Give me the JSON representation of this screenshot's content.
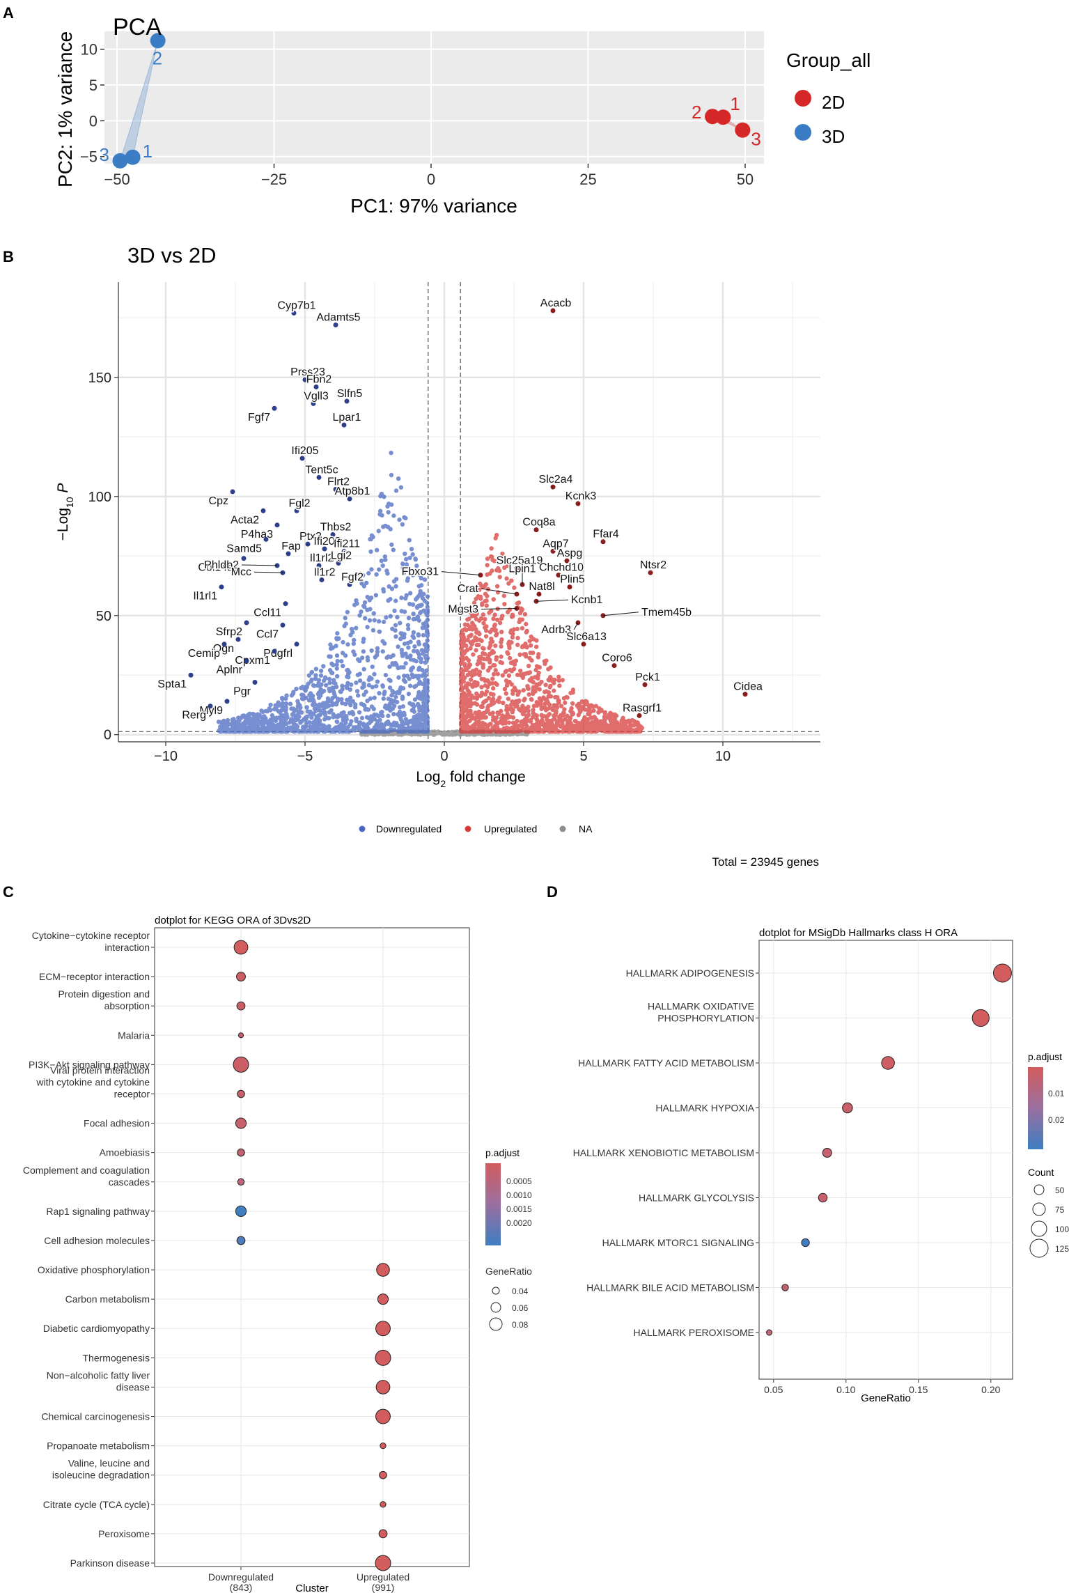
{
  "chart_data": [
    {
      "panel": "A",
      "type": "scatter",
      "title": "PCA",
      "xlabel": "PC1: 97% variance",
      "ylabel": "PC2: 1% variance",
      "xlim": [
        -52,
        53
      ],
      "ylim": [
        -6,
        12.5
      ],
      "xticks": [
        -50,
        -25,
        0,
        25,
        50
      ],
      "yticks": [
        -5,
        0,
        5,
        10
      ],
      "legend": {
        "title": "Group_all",
        "position": "right"
      },
      "series": [
        {
          "name": "2D",
          "color": "#d62728",
          "points": [
            {
              "x": 46.5,
              "y": 0.5,
              "label": "1"
            },
            {
              "x": 44.8,
              "y": 0.6,
              "label": "2"
            },
            {
              "x": 49.6,
              "y": -1.3,
              "label": "3"
            }
          ]
        },
        {
          "name": "3D",
          "color": "#3b7dc4",
          "points": [
            {
              "x": -47.5,
              "y": -5.1,
              "label": "1"
            },
            {
              "x": -43.5,
              "y": 11.2,
              "label": "2"
            },
            {
              "x": -49.5,
              "y": -5.6,
              "label": "3"
            }
          ]
        }
      ]
    },
    {
      "panel": "B",
      "type": "scatter",
      "title": "3D vs 2D",
      "xlabel": "Log2 fold change",
      "ylabel": "-Log10 P",
      "xlim": [
        -11.7,
        13.5
      ],
      "ylim": [
        -3,
        190
      ],
      "xticks": [
        -10,
        -5,
        0,
        5,
        10
      ],
      "yticks": [
        0,
        50,
        100,
        150
      ],
      "fc_cutoff": 0.58,
      "p_cutoff": 1.3,
      "legend": {
        "position": "bottom",
        "items": [
          {
            "label": "Downregulated",
            "color": "#4a68c2"
          },
          {
            "label": "Upregulated",
            "color": "#d63b3b"
          },
          {
            "label": "NA",
            "color": "#8c8c8c"
          }
        ]
      },
      "caption": "Total = 23945 genes",
      "labeled_genes": [
        {
          "gene": "Cyp7b1",
          "x": -5.4,
          "y": 177,
          "dir": "down"
        },
        {
          "gene": "Adamts5",
          "x": -3.9,
          "y": 172,
          "dir": "down"
        },
        {
          "gene": "Prss23",
          "x": -5.0,
          "y": 149,
          "dir": "down"
        },
        {
          "gene": "Fbn2",
          "x": -4.6,
          "y": 146,
          "dir": "down"
        },
        {
          "gene": "Fgf7",
          "x": -6.1,
          "y": 137,
          "dir": "down"
        },
        {
          "gene": "Vgll3",
          "x": -4.7,
          "y": 139,
          "dir": "down"
        },
        {
          "gene": "Slfn5",
          "x": -3.5,
          "y": 140,
          "dir": "down"
        },
        {
          "gene": "Lpar1",
          "x": -3.6,
          "y": 130,
          "dir": "down"
        },
        {
          "gene": "Ifi205",
          "x": -5.1,
          "y": 116,
          "dir": "down"
        },
        {
          "gene": "Tent5c",
          "x": -4.5,
          "y": 108,
          "dir": "down"
        },
        {
          "gene": "Flrt2",
          "x": -3.9,
          "y": 103,
          "dir": "down"
        },
        {
          "gene": "Cpz",
          "x": -7.6,
          "y": 102,
          "dir": "down"
        },
        {
          "gene": "Acta2",
          "x": -6.5,
          "y": 94,
          "dir": "down"
        },
        {
          "gene": "Fgl2",
          "x": -5.3,
          "y": 94,
          "dir": "down"
        },
        {
          "gene": "Atp8b1",
          "x": -3.4,
          "y": 99,
          "dir": "down"
        },
        {
          "gene": "P4ha3",
          "x": -6.0,
          "y": 88,
          "dir": "down"
        },
        {
          "gene": "Samd5",
          "x": -6.4,
          "y": 82,
          "dir": "down"
        },
        {
          "gene": "Thbs2",
          "x": -4.0,
          "y": 84,
          "dir": "down"
        },
        {
          "gene": "Ptx3",
          "x": -4.9,
          "y": 80,
          "dir": "down"
        },
        {
          "gene": "Col14a1",
          "x": -7.2,
          "y": 74,
          "dir": "down"
        },
        {
          "gene": "Fap",
          "x": -5.6,
          "y": 76,
          "dir": "down"
        },
        {
          "gene": "Ifi203",
          "x": -4.3,
          "y": 78,
          "dir": "down"
        },
        {
          "gene": "Ifi211",
          "x": -3.6,
          "y": 77,
          "dir": "down"
        },
        {
          "gene": "Phldb2",
          "x": -6.0,
          "y": 71,
          "dir": "down"
        },
        {
          "gene": "Il1rl2",
          "x": -4.5,
          "y": 71,
          "dir": "down"
        },
        {
          "gene": "Lgi2",
          "x": -3.8,
          "y": 72,
          "dir": "down"
        },
        {
          "gene": "Mcc",
          "x": -5.8,
          "y": 68,
          "dir": "down"
        },
        {
          "gene": "Il1r2",
          "x": -4.4,
          "y": 65,
          "dir": "down"
        },
        {
          "gene": "Fgf2",
          "x": -3.4,
          "y": 63,
          "dir": "down"
        },
        {
          "gene": "Il1rl1",
          "x": -8.0,
          "y": 62,
          "dir": "down"
        },
        {
          "gene": "Ccl11",
          "x": -5.7,
          "y": 55,
          "dir": "down"
        },
        {
          "gene": "Sfrp2",
          "x": -7.1,
          "y": 47,
          "dir": "down"
        },
        {
          "gene": "Ogn",
          "x": -7.4,
          "y": 40,
          "dir": "down"
        },
        {
          "gene": "Ccl7",
          "x": -5.8,
          "y": 46,
          "dir": "down"
        },
        {
          "gene": "Cemip",
          "x": -7.9,
          "y": 38,
          "dir": "down"
        },
        {
          "gene": "Pdgfrl",
          "x": -5.3,
          "y": 38,
          "dir": "down"
        },
        {
          "gene": "Cpxm1",
          "x": -6.1,
          "y": 35,
          "dir": "down"
        },
        {
          "gene": "Aplnr",
          "x": -7.1,
          "y": 31,
          "dir": "down"
        },
        {
          "gene": "Spta1",
          "x": -9.1,
          "y": 25,
          "dir": "down"
        },
        {
          "gene": "Pgr",
          "x": -6.8,
          "y": 22,
          "dir": "down"
        },
        {
          "gene": "Myl9",
          "x": -7.8,
          "y": 14,
          "dir": "down"
        },
        {
          "gene": "Rerg",
          "x": -8.4,
          "y": 12,
          "dir": "down"
        },
        {
          "gene": "Acacb",
          "x": 3.9,
          "y": 178,
          "dir": "up"
        },
        {
          "gene": "Slc2a4",
          "x": 3.9,
          "y": 104,
          "dir": "up"
        },
        {
          "gene": "Kcnk3",
          "x": 4.8,
          "y": 97,
          "dir": "up"
        },
        {
          "gene": "Coq8a",
          "x": 3.3,
          "y": 86,
          "dir": "up"
        },
        {
          "gene": "Ffar4",
          "x": 5.7,
          "y": 81,
          "dir": "up"
        },
        {
          "gene": "Aqp7",
          "x": 3.9,
          "y": 77,
          "dir": "up"
        },
        {
          "gene": "Aspg",
          "x": 4.4,
          "y": 73,
          "dir": "up"
        },
        {
          "gene": "Slc25a19",
          "x": 2.6,
          "y": 70,
          "dir": "up"
        },
        {
          "gene": "Ntsr2",
          "x": 7.4,
          "y": 68,
          "dir": "up"
        },
        {
          "gene": "Chchd10",
          "x": 4.1,
          "y": 67,
          "dir": "up"
        },
        {
          "gene": "Fbxo31",
          "x": 1.3,
          "y": 67,
          "dir": "up"
        },
        {
          "gene": "Lpin1",
          "x": 2.8,
          "y": 63,
          "dir": "up"
        },
        {
          "gene": "Plin5",
          "x": 4.5,
          "y": 62,
          "dir": "up"
        },
        {
          "gene": "Nat8l",
          "x": 3.4,
          "y": 59,
          "dir": "up"
        },
        {
          "gene": "Crat",
          "x": 2.6,
          "y": 59,
          "dir": "up"
        },
        {
          "gene": "Kcnb1",
          "x": 3.3,
          "y": 56,
          "dir": "up"
        },
        {
          "gene": "Mgst3",
          "x": 2.6,
          "y": 53,
          "dir": "up"
        },
        {
          "gene": "Adrb3",
          "x": 4.8,
          "y": 47,
          "dir": "up"
        },
        {
          "gene": "Tmem45b",
          "x": 5.7,
          "y": 50,
          "dir": "up"
        },
        {
          "gene": "Slc6a13",
          "x": 5.0,
          "y": 38,
          "dir": "up"
        },
        {
          "gene": "Coro6",
          "x": 6.1,
          "y": 29,
          "dir": "up"
        },
        {
          "gene": "Pck1",
          "x": 7.2,
          "y": 21,
          "dir": "up"
        },
        {
          "gene": "Cidea",
          "x": 10.8,
          "y": 17,
          "dir": "up"
        },
        {
          "gene": "Rasgrf1",
          "x": 7.0,
          "y": 8,
          "dir": "up"
        }
      ]
    },
    {
      "panel": "C",
      "type": "scatter",
      "title": "dotplot for KEGG ORA of 3Dvs2D",
      "xlabel": "Cluster",
      "clusters": [
        "Downregulated",
        "Upregulated"
      ],
      "cluster_counts": [
        "(843)",
        "(991)"
      ],
      "color_legend": {
        "title": "p.adjust",
        "ticks": [
          "0.0005",
          "0.0010",
          "0.0015",
          "0.0020"
        ]
      },
      "size_legend": {
        "title": "GeneRatio",
        "ticks": [
          "0.04",
          "0.06",
          "0.08"
        ]
      },
      "terms": [
        {
          "term": [
            "Cytokine−cytokine receptor",
            "interaction"
          ],
          "cluster": 0,
          "gene_ratio": 0.08,
          "padj": 0.0001
        },
        {
          "term": [
            "ECM−receptor interaction"
          ],
          "cluster": 0,
          "gene_ratio": 0.05,
          "padj": 0.0002
        },
        {
          "term": [
            "Protein digestion and",
            "absorption"
          ],
          "cluster": 0,
          "gene_ratio": 0.045,
          "padj": 0.0002
        },
        {
          "term": [
            "Malaria"
          ],
          "cluster": 0,
          "gene_ratio": 0.025,
          "padj": 0.0003
        },
        {
          "term": [
            "PI3K−Akt signaling pathway"
          ],
          "cluster": 0,
          "gene_ratio": 0.09,
          "padj": 0.0002
        },
        {
          "term": [
            "Viral protein interaction",
            "with cytokine and cytokine",
            "receptor"
          ],
          "cluster": 0,
          "gene_ratio": 0.04,
          "padj": 0.0003
        },
        {
          "term": [
            "Focal adhesion"
          ],
          "cluster": 0,
          "gene_ratio": 0.06,
          "padj": 0.0003
        },
        {
          "term": [
            "Amoebiasis"
          ],
          "cluster": 0,
          "gene_ratio": 0.04,
          "padj": 0.0004
        },
        {
          "term": [
            "Complement and coagulation",
            "cascades"
          ],
          "cluster": 0,
          "gene_ratio": 0.035,
          "padj": 0.0005
        },
        {
          "term": [
            "Rap1 signaling pathway"
          ],
          "cluster": 0,
          "gene_ratio": 0.06,
          "padj": 0.0021
        },
        {
          "term": [
            "Cell adhesion molecules"
          ],
          "cluster": 0,
          "gene_ratio": 0.045,
          "padj": 0.0019
        },
        {
          "term": [
            "Oxidative phosphorylation"
          ],
          "cluster": 1,
          "gene_ratio": 0.075,
          "padj": 0.0001
        },
        {
          "term": [
            "Carbon metabolism"
          ],
          "cluster": 1,
          "gene_ratio": 0.06,
          "padj": 0.0001
        },
        {
          "term": [
            "Diabetic cardiomyopathy"
          ],
          "cluster": 1,
          "gene_ratio": 0.085,
          "padj": 0.0001
        },
        {
          "term": [
            "Thermogenesis"
          ],
          "cluster": 1,
          "gene_ratio": 0.09,
          "padj": 0.0001
        },
        {
          "term": [
            "Non−alcoholic fatty liver",
            "disease"
          ],
          "cluster": 1,
          "gene_ratio": 0.08,
          "padj": 0.0001
        },
        {
          "term": [
            "Chemical carcinogenesis"
          ],
          "cluster": 1,
          "gene_ratio": 0.085,
          "padj": 0.0001
        },
        {
          "term": [
            "Propanoate metabolism"
          ],
          "cluster": 1,
          "gene_ratio": 0.03,
          "padj": 0.0001
        },
        {
          "term": [
            "Valine, leucine and",
            "isoleucine degradation"
          ],
          "cluster": 1,
          "gene_ratio": 0.04,
          "padj": 0.0001
        },
        {
          "term": [
            "Citrate cycle (TCA cycle)"
          ],
          "cluster": 1,
          "gene_ratio": 0.03,
          "padj": 0.0001
        },
        {
          "term": [
            "Peroxisome"
          ],
          "cluster": 1,
          "gene_ratio": 0.045,
          "padj": 0.0001
        },
        {
          "term": [
            "Parkinson disease"
          ],
          "cluster": 1,
          "gene_ratio": 0.09,
          "padj": 0.0001
        }
      ]
    },
    {
      "panel": "D",
      "type": "scatter",
      "title": "dotplot for MSigDb Hallmarks class H ORA",
      "xlabel": "GeneRatio",
      "xlim": [
        0.04,
        0.215
      ],
      "xticks": [
        0.05,
        0.1,
        0.15,
        0.2
      ],
      "xtick_labels": [
        "0.05",
        "0.10",
        "0.15",
        "0.20"
      ],
      "color_legend": {
        "title": "p.adjust",
        "ticks": [
          "0.01",
          "0.02"
        ]
      },
      "size_legend": {
        "title": "Count",
        "ticks": [
          "50",
          "75",
          "100",
          "125"
        ]
      },
      "terms": [
        {
          "term": [
            "HALLMARK ADIPOGENESIS"
          ],
          "gene_ratio": 0.208,
          "count": 130,
          "padj": 0.001
        },
        {
          "term": [
            "HALLMARK OXIDATIVE",
            "PHOSPHORYLATION"
          ],
          "gene_ratio": 0.193,
          "count": 120,
          "padj": 0.001
        },
        {
          "term": [
            "HALLMARK FATTY ACID METABOLISM"
          ],
          "gene_ratio": 0.129,
          "count": 88,
          "padj": 0.002
        },
        {
          "term": [
            "HALLMARK HYPOXIA"
          ],
          "gene_ratio": 0.101,
          "count": 66,
          "padj": 0.003
        },
        {
          "term": [
            "HALLMARK XENOBIOTIC METABOLISM"
          ],
          "gene_ratio": 0.087,
          "count": 58,
          "padj": 0.004
        },
        {
          "term": [
            "HALLMARK GLYCOLYSIS"
          ],
          "gene_ratio": 0.084,
          "count": 55,
          "padj": 0.004
        },
        {
          "term": [
            "HALLMARK MTORC1 SIGNALING"
          ],
          "gene_ratio": 0.072,
          "count": 48,
          "padj": 0.026
        },
        {
          "term": [
            "HALLMARK BILE ACID METABOLISM"
          ],
          "gene_ratio": 0.058,
          "count": 38,
          "padj": 0.005
        },
        {
          "term": [
            "HALLMARK PEROXISOME"
          ],
          "gene_ratio": 0.047,
          "count": 30,
          "padj": 0.004
        }
      ]
    }
  ],
  "panel_labels": [
    "A",
    "B",
    "C",
    "D"
  ]
}
